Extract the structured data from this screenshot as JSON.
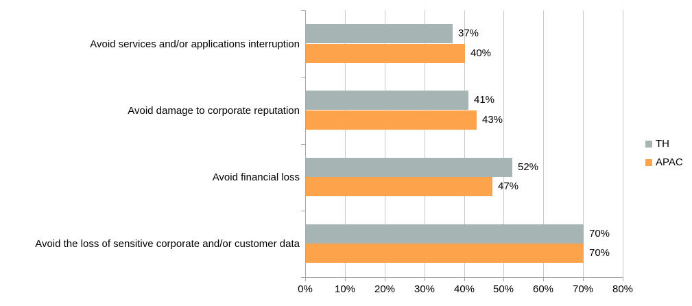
{
  "chart_data": {
    "type": "bar",
    "orientation": "horizontal",
    "title": "",
    "xlabel": "",
    "ylabel": "",
    "categories": [
      "Avoid services and/or applications interruption",
      "Avoid damage to corporate reputation",
      "Avoid financial loss",
      "Avoid the loss of sensitive corporate and/or customer data"
    ],
    "series": [
      {
        "name": "TH",
        "color": "#A6B5B3",
        "values": [
          37,
          41,
          52,
          70
        ]
      },
      {
        "name": "APAC",
        "color": "#FCA34C",
        "values": [
          40,
          43,
          47,
          70
        ]
      }
    ],
    "data_labels": [
      [
        "37%",
        "41%",
        "52%",
        "70%"
      ],
      [
        "40%",
        "43%",
        "47%",
        "70%"
      ]
    ],
    "xlim": [
      0,
      80
    ],
    "x_ticks": [
      0,
      10,
      20,
      30,
      40,
      50,
      60,
      70,
      80
    ],
    "x_tick_labels": [
      "0%",
      "10%",
      "20%",
      "30%",
      "40%",
      "50%",
      "60%",
      "70%",
      "80%"
    ],
    "grid": true,
    "legend_position": "right",
    "legend_entries": [
      "TH",
      "APAC"
    ]
  },
  "colors": {
    "gridline": "#C9C9C9",
    "axis": "#A6A6A6",
    "text": "#000000",
    "background": "#FFFFFF"
  }
}
